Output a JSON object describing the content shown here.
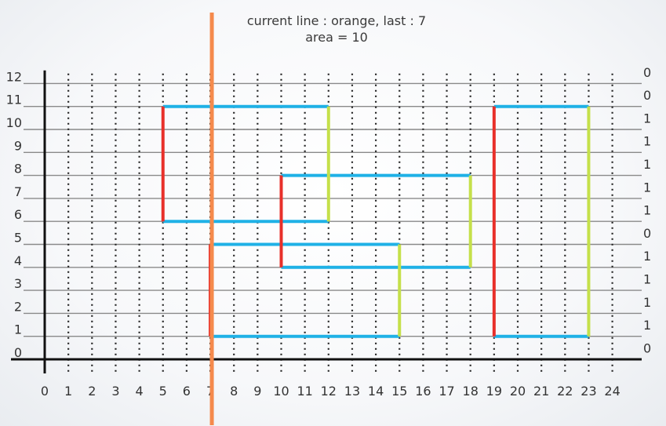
{
  "caption": {
    "line1": "current line : orange, last : 7",
    "line2": "area = 10"
  },
  "colors": {
    "horizontal": "#1fb1e6",
    "left_edge": "#e8302a",
    "right_edge": "#c5e04a",
    "sweep_line": "#f58a4c",
    "grid": "#8a8a8a",
    "axis": "#111111"
  },
  "chart_data": {
    "type": "diagram",
    "x_ticks": [
      0,
      1,
      2,
      3,
      4,
      5,
      6,
      7,
      8,
      9,
      10,
      11,
      12,
      13,
      14,
      15,
      16,
      17,
      18,
      19,
      20,
      21,
      22,
      23,
      24
    ],
    "y_ticks": [
      0,
      1,
      2,
      3,
      4,
      5,
      6,
      7,
      8,
      9,
      10,
      11,
      12
    ],
    "xlim": [
      0,
      25
    ],
    "ylim": [
      0,
      12.5
    ],
    "right_counts": [
      {
        "y": 12.5,
        "label": "0"
      },
      {
        "y": 11.5,
        "label": "0"
      },
      {
        "y": 10.5,
        "label": "1"
      },
      {
        "y": 9.5,
        "label": "1"
      },
      {
        "y": 8.5,
        "label": "1"
      },
      {
        "y": 7.5,
        "label": "1"
      },
      {
        "y": 6.5,
        "label": "1"
      },
      {
        "y": 5.5,
        "label": "0"
      },
      {
        "y": 4.5,
        "label": "1"
      },
      {
        "y": 3.5,
        "label": "1"
      },
      {
        "y": 2.5,
        "label": "1"
      },
      {
        "y": 1.5,
        "label": "1"
      },
      {
        "y": 0.5,
        "label": "0"
      }
    ],
    "horizontal_segments": [
      {
        "x1": 5,
        "x2": 12,
        "y": 11
      },
      {
        "x1": 5,
        "x2": 12,
        "y": 6
      },
      {
        "x1": 10,
        "x2": 18,
        "y": 8
      },
      {
        "x1": 10,
        "x2": 18,
        "y": 4
      },
      {
        "x1": 7,
        "x2": 15,
        "y": 5
      },
      {
        "x1": 7,
        "x2": 15,
        "y": 1
      },
      {
        "x1": 19,
        "x2": 23,
        "y": 11
      },
      {
        "x1": 19,
        "x2": 23,
        "y": 1
      }
    ],
    "left_edges": [
      {
        "x": 5,
        "y1": 6,
        "y2": 11
      },
      {
        "x": 10,
        "y1": 4,
        "y2": 8
      },
      {
        "x": 7,
        "y1": 1,
        "y2": 5
      },
      {
        "x": 19,
        "y1": 1,
        "y2": 11
      }
    ],
    "right_edges": [
      {
        "x": 12,
        "y1": 6,
        "y2": 11
      },
      {
        "x": 18,
        "y1": 4,
        "y2": 8
      },
      {
        "x": 15,
        "y1": 1,
        "y2": 5
      },
      {
        "x": 23,
        "y1": 1,
        "y2": 11
      }
    ],
    "sweep_line_x": 7
  }
}
